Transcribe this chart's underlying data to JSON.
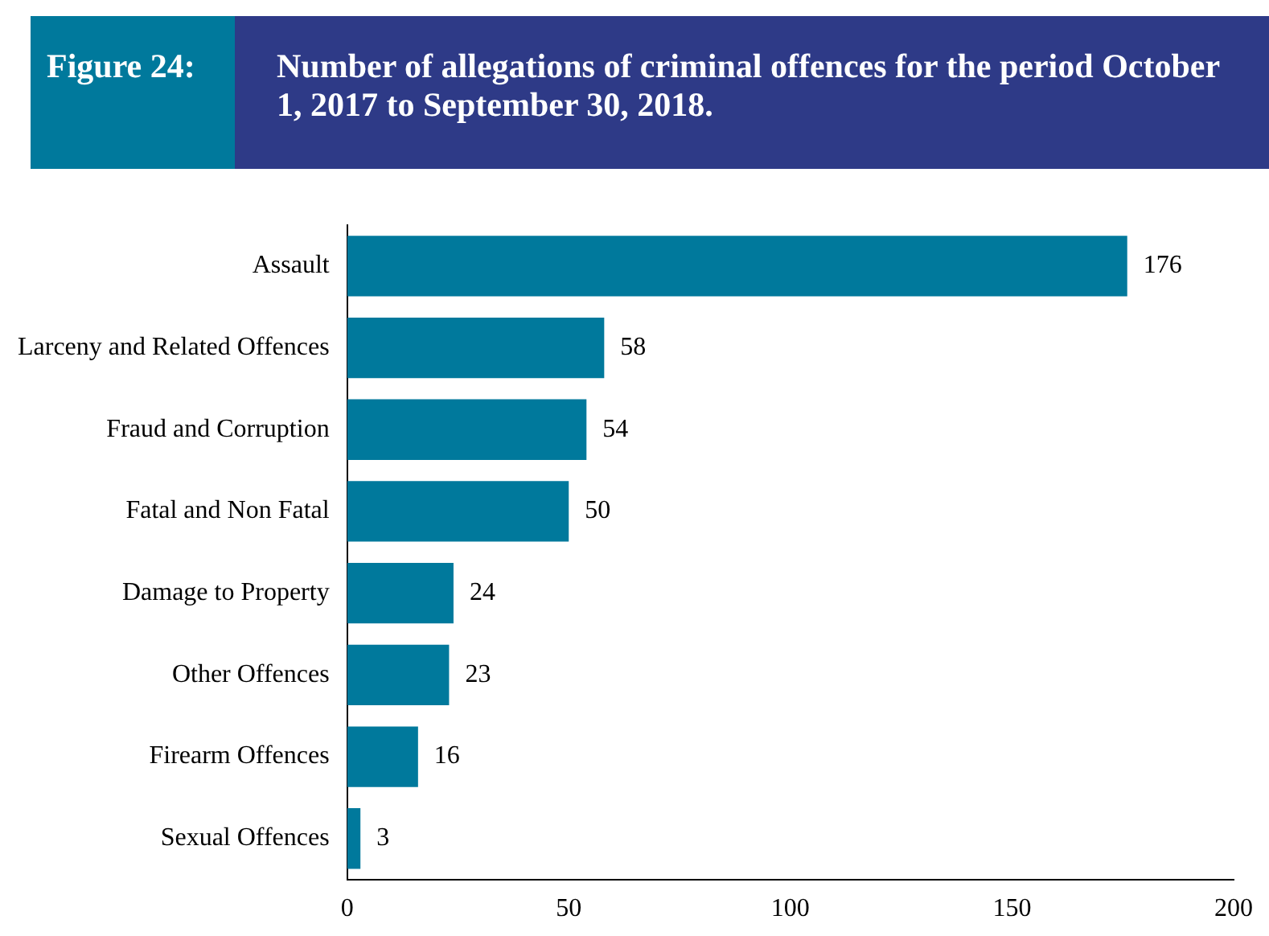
{
  "chart_data": {
    "type": "bar",
    "orientation": "horizontal",
    "title": "Number of allegations of criminal offences for the period October 1, 2017 to September 30, 2018.",
    "annotations": [
      "Figure 24:"
    ],
    "categories": [
      "Assault",
      "Larceny and Related Offences",
      "Fraud and Corruption",
      "Fatal and Non Fatal",
      "Damage to Property",
      "Other Offences",
      "Firearm Offences",
      "Sexual Offences"
    ],
    "values": [
      176,
      58,
      54,
      50,
      24,
      23,
      16,
      3
    ],
    "color": "#00799c",
    "xlim": [
      0,
      200
    ],
    "xticks": [
      0,
      50,
      100,
      150,
      200
    ],
    "grid": false,
    "legend": false,
    "data_labels": true
  }
}
